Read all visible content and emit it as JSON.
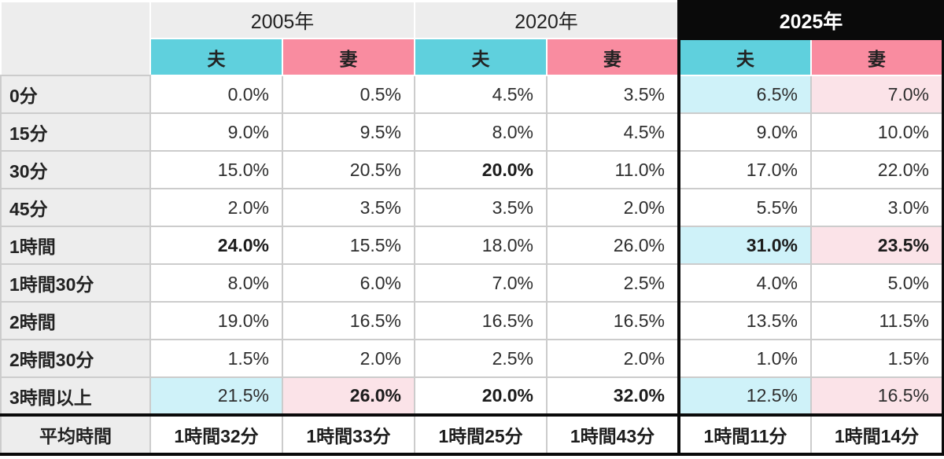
{
  "colors": {
    "husband": "#5FD0DD",
    "wife": "#F98CA0",
    "husband_light": "#CFF2F9",
    "wife_light": "#FBE3E8",
    "header_gray": "#EDEDED",
    "black": "#0A0A0A"
  },
  "table": {
    "corner_label": "",
    "year_groups": [
      {
        "label": "2005年",
        "emphasized": false
      },
      {
        "label": "2020年",
        "emphasized": false
      },
      {
        "label": "2025年",
        "emphasized": true
      }
    ],
    "spouse_labels": [
      "夫",
      "妻"
    ],
    "rows": [
      {
        "label": "0分",
        "cells": [
          {
            "value": "0.0%"
          },
          {
            "value": "0.5%"
          },
          {
            "value": "4.5%"
          },
          {
            "value": "3.5%"
          },
          {
            "value": "6.5%",
            "highlight": true
          },
          {
            "value": "7.0%",
            "highlight": true
          }
        ]
      },
      {
        "label": "15分",
        "cells": [
          {
            "value": "9.0%"
          },
          {
            "value": "9.5%"
          },
          {
            "value": "8.0%"
          },
          {
            "value": "4.5%"
          },
          {
            "value": "9.0%"
          },
          {
            "value": "10.0%"
          }
        ]
      },
      {
        "label": "30分",
        "cells": [
          {
            "value": "15.0%"
          },
          {
            "value": "20.5%"
          },
          {
            "value": "20.0%",
            "bold": true
          },
          {
            "value": "11.0%"
          },
          {
            "value": "17.0%"
          },
          {
            "value": "22.0%"
          }
        ]
      },
      {
        "label": "45分",
        "cells": [
          {
            "value": "2.0%"
          },
          {
            "value": "3.5%"
          },
          {
            "value": "3.5%"
          },
          {
            "value": "2.0%"
          },
          {
            "value": "5.5%"
          },
          {
            "value": "3.0%"
          }
        ]
      },
      {
        "label": "1時間",
        "cells": [
          {
            "value": "24.0%",
            "bold": true
          },
          {
            "value": "15.5%"
          },
          {
            "value": "18.0%"
          },
          {
            "value": "26.0%"
          },
          {
            "value": "31.0%",
            "bold": true,
            "highlight": true
          },
          {
            "value": "23.5%",
            "bold": true,
            "highlight": true
          }
        ]
      },
      {
        "label": "1時間30分",
        "cells": [
          {
            "value": "8.0%"
          },
          {
            "value": "6.0%"
          },
          {
            "value": "7.0%"
          },
          {
            "value": "2.5%"
          },
          {
            "value": "4.0%"
          },
          {
            "value": "5.0%"
          }
        ]
      },
      {
        "label": "2時間",
        "cells": [
          {
            "value": "19.0%"
          },
          {
            "value": "16.5%"
          },
          {
            "value": "16.5%"
          },
          {
            "value": "16.5%"
          },
          {
            "value": "13.5%"
          },
          {
            "value": "11.5%"
          }
        ]
      },
      {
        "label": "2時間30分",
        "cells": [
          {
            "value": "1.5%"
          },
          {
            "value": "2.0%"
          },
          {
            "value": "2.5%"
          },
          {
            "value": "2.0%"
          },
          {
            "value": "1.0%"
          },
          {
            "value": "1.5%"
          }
        ]
      },
      {
        "label": "3時間以上",
        "cells": [
          {
            "value": "21.5%",
            "highlight": true
          },
          {
            "value": "26.0%",
            "bold": true,
            "highlight": true
          },
          {
            "value": "20.0%",
            "bold": true
          },
          {
            "value": "32.0%",
            "bold": true
          },
          {
            "value": "12.5%",
            "highlight": true
          },
          {
            "value": "16.5%",
            "highlight": true
          }
        ]
      }
    ],
    "footer": {
      "label": "平均時間",
      "values": [
        "1時間32分",
        "1時間33分",
        "1時間25分",
        "1時間43分",
        "1時間11分",
        "1時間14分"
      ]
    }
  },
  "chart_data": {
    "type": "table",
    "title": "",
    "categories": [
      "0分",
      "15分",
      "30分",
      "45分",
      "1時間",
      "1時間30分",
      "2時間",
      "2時間30分",
      "3時間以上"
    ],
    "unit": "%",
    "series": [
      {
        "name": "2005年 夫",
        "values": [
          0.0,
          9.0,
          15.0,
          2.0,
          24.0,
          8.0,
          19.0,
          1.5,
          21.5
        ],
        "average": "1時間32分"
      },
      {
        "name": "2005年 妻",
        "values": [
          0.5,
          9.5,
          20.5,
          3.5,
          15.5,
          6.0,
          16.5,
          2.0,
          26.0
        ],
        "average": "1時間33分"
      },
      {
        "name": "2020年 夫",
        "values": [
          4.5,
          8.0,
          20.0,
          3.5,
          18.0,
          7.0,
          16.5,
          2.5,
          20.0
        ],
        "average": "1時間25分"
      },
      {
        "name": "2020年 妻",
        "values": [
          3.5,
          4.5,
          11.0,
          2.0,
          26.0,
          2.5,
          16.5,
          2.0,
          32.0
        ],
        "average": "1時間43分"
      },
      {
        "name": "2025年 夫",
        "values": [
          6.5,
          9.0,
          17.0,
          5.5,
          31.0,
          4.0,
          13.5,
          1.0,
          12.5
        ],
        "average": "1時間11分"
      },
      {
        "name": "2025年 妻",
        "values": [
          7.0,
          10.0,
          22.0,
          3.0,
          23.5,
          5.0,
          11.5,
          1.5,
          16.5
        ],
        "average": "1時間14分"
      }
    ]
  }
}
